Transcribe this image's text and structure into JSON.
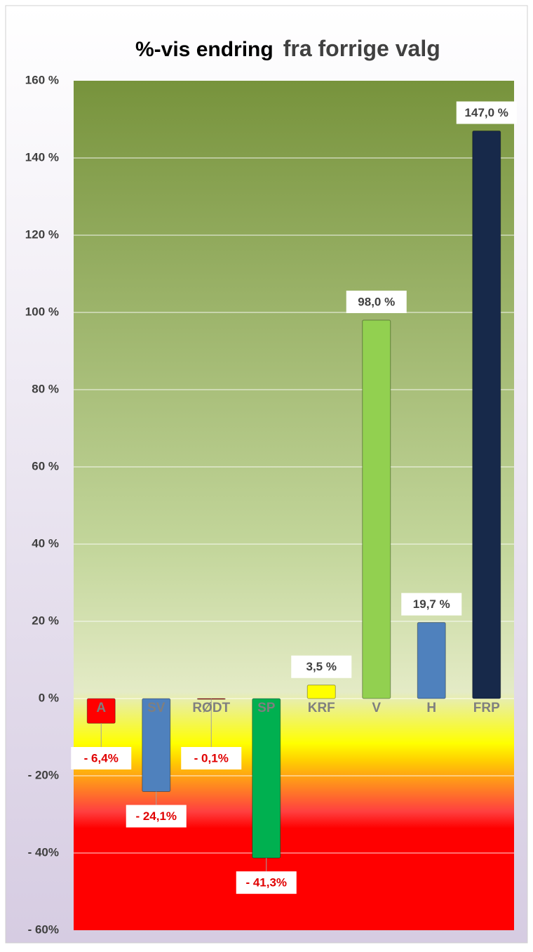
{
  "chart_data": {
    "type": "bar",
    "title": "%-vis endring",
    "subtitle": "fra forrige valg",
    "categories": [
      "A",
      "SV",
      "RØDT",
      "SP",
      "KRF",
      "V",
      "H",
      "FRP"
    ],
    "values": [
      -6.4,
      -24.1,
      -0.1,
      -41.3,
      3.5,
      98.0,
      19.7,
      147.0
    ],
    "value_labels": [
      "- 6,4%",
      "- 24,1%",
      "- 0,1%",
      "- 41,3%",
      "3,5 %",
      "98,0 %",
      "19,7 %",
      "147,0 %"
    ],
    "colors": [
      "#ff0000",
      "#4f81bd",
      "#c00000",
      "#00b050",
      "#ffff00",
      "#92d050",
      "#4f81bd",
      "#17294a"
    ],
    "ylim": [
      -60,
      160
    ],
    "yticks": [
      {
        "value": -60,
        "label": "- 60%"
      },
      {
        "value": -40,
        "label": "- 40%"
      },
      {
        "value": -20,
        "label": "- 20%"
      },
      {
        "value": 0,
        "label": "0 %"
      },
      {
        "value": 20,
        "label": "20 %"
      },
      {
        "value": 40,
        "label": "40 %"
      },
      {
        "value": 60,
        "label": "60 %"
      },
      {
        "value": 80,
        "label": "80 %"
      },
      {
        "value": 100,
        "label": "100 %"
      },
      {
        "value": 120,
        "label": "120 %"
      },
      {
        "value": 140,
        "label": "140 %"
      },
      {
        "value": 160,
        "label": "160 %"
      }
    ],
    "grid": true
  }
}
